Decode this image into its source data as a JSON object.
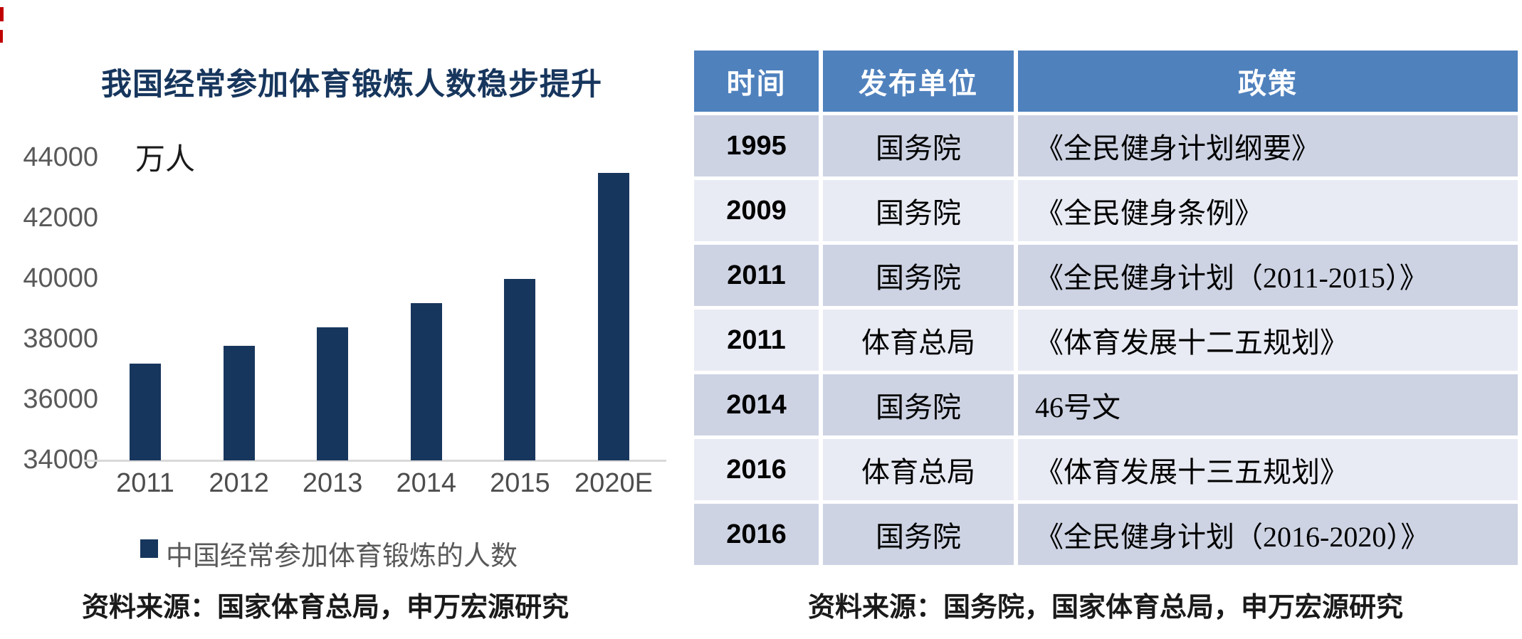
{
  "chart": {
    "title": "我国经常参加体育锻炼人数稳步提升",
    "unit_label": "万人",
    "legend_label": "中国经常参加体育锻炼的人数",
    "source": "资料来源：国家体育总局，申万宏源研究",
    "colors": {
      "bar": "#17365D",
      "title": "#17365D",
      "axis_line": "#D9D9D9",
      "ytick_text": "#595959",
      "xlabel_text": "#4D4D4D",
      "legend_text": "#595959"
    }
  },
  "chart_data": {
    "type": "bar",
    "title": "我国经常参加体育锻炼人数稳步提升",
    "series_name": "中国经常参加体育锻炼的人数",
    "categories": [
      "2011",
      "2012",
      "2013",
      "2014",
      "2015",
      "2020E"
    ],
    "values": [
      37200,
      37800,
      38400,
      39200,
      40000,
      43500
    ],
    "xlabel": "",
    "ylabel": "万人",
    "ylim": [
      34000,
      44000
    ],
    "yticks": [
      34000,
      36000,
      38000,
      40000,
      42000,
      44000
    ],
    "grid": false,
    "legend_position": "bottom"
  },
  "table": {
    "headers": [
      "时间",
      "发布单位",
      "政策"
    ],
    "rows": [
      [
        "1995",
        "国务院",
        "《全民健身计划纲要》"
      ],
      [
        "2009",
        "国务院",
        "《全民健身条例》"
      ],
      [
        "2011",
        "国务院",
        "《全民健身计划（2011-2015）》"
      ],
      [
        "2011",
        "体育总局",
        "《体育发展十二五规划》"
      ],
      [
        "2014",
        "国务院",
        "46号文"
      ],
      [
        "2016",
        "体育总局",
        "《体育发展十三五规划》"
      ],
      [
        "2016",
        "国务院",
        "《全民健身计划（2016-2020）》"
      ]
    ],
    "source": "资料来源：国务院，国家体育总局，申万宏源研究",
    "colors": {
      "header_bg": "#4F81BD",
      "header_text": "#FFFFFF",
      "band_dark": "#CDD3E3",
      "band_light": "#E9EBF4"
    }
  },
  "decor": {
    "red_mark_color": "#C00000"
  }
}
